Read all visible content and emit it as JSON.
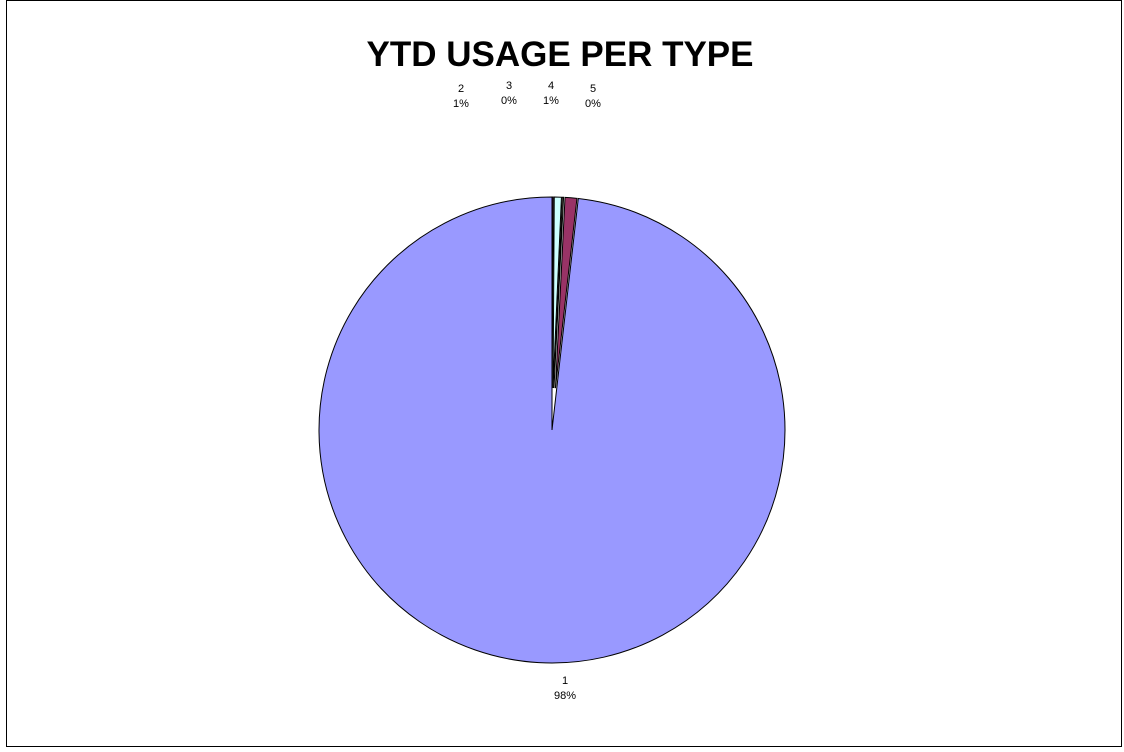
{
  "chart_data": {
    "type": "pie",
    "title": "YTD USAGE PER TYPE",
    "slices": [
      {
        "name": "1",
        "value": 98.2,
        "pct_label": "98%",
        "color": "#9999ff"
      },
      {
        "name": "2",
        "value": 1.0,
        "pct_label": "1%",
        "color": "#993366"
      },
      {
        "name": "3",
        "value": 0.1,
        "pct_label": "0%",
        "color": "#ffffcc"
      },
      {
        "name": "4",
        "value": 0.6,
        "pct_label": "1%",
        "color": "#ccffff"
      },
      {
        "name": "5",
        "value": 0.1,
        "pct_label": "0%",
        "color": "#660066"
      }
    ],
    "legend": "none"
  }
}
